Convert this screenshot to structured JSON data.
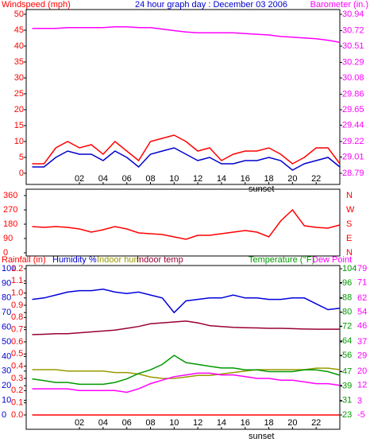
{
  "chart_data": [
    {
      "type": "line",
      "title": "24 hour graph day : December 03 2006",
      "ylabel": "Windspeed (mph)",
      "y2label": "Barometer (in.)",
      "annotation": "sunset",
      "x": [
        -2,
        -1,
        0,
        1,
        2,
        3,
        4,
        5,
        6,
        7,
        8,
        9,
        10,
        11,
        12,
        13,
        14,
        15,
        16,
        17,
        18,
        19,
        20,
        21,
        22,
        23,
        24
      ],
      "xlim": [
        -2.5,
        24
      ],
      "xticks": [
        {
          "value": 2,
          "label": "02"
        },
        {
          "value": 4,
          "label": "04"
        },
        {
          "value": 6,
          "label": "06"
        },
        {
          "value": 8,
          "label": "08"
        },
        {
          "value": 10,
          "label": "10"
        },
        {
          "value": 12,
          "label": "12"
        },
        {
          "value": 14,
          "label": "14"
        },
        {
          "value": 16,
          "label": "16"
        },
        {
          "value": 18,
          "label": "18"
        },
        {
          "value": 20,
          "label": "20"
        },
        {
          "value": 22,
          "label": "22"
        }
      ],
      "ylim": [
        0,
        50
      ],
      "yticks": [
        0,
        5,
        10,
        15,
        20,
        25,
        30,
        35,
        40,
        45,
        50
      ],
      "y2lim": [
        28.79,
        30.94
      ],
      "y2ticks": [
        28.79,
        29.01,
        29.22,
        29.44,
        29.65,
        29.86,
        30.08,
        30.29,
        30.51,
        30.72,
        30.94
      ],
      "series": [
        {
          "color": "#ff0000",
          "values": [
            3,
            3,
            8,
            10,
            8,
            9,
            6,
            10,
            7,
            4,
            10,
            11,
            12,
            10,
            7,
            8,
            4,
            6,
            7,
            7,
            8,
            6,
            3,
            5,
            8,
            8,
            3
          ]
        },
        {
          "color": "#0000cc",
          "values": [
            2,
            2,
            5,
            7,
            6,
            6,
            4,
            7,
            5,
            2,
            6,
            7,
            8,
            6,
            4,
            5,
            3,
            3,
            4,
            4,
            5,
            4,
            1,
            3,
            4,
            5,
            2
          ]
        },
        {
          "color": "#ff00ff",
          "axis": "y2",
          "values": [
            30.75,
            30.75,
            30.75,
            30.76,
            30.76,
            30.76,
            30.76,
            30.77,
            30.77,
            30.76,
            30.76,
            30.74,
            30.72,
            30.7,
            30.69,
            30.69,
            30.69,
            30.69,
            30.68,
            30.67,
            30.66,
            30.64,
            30.63,
            30.62,
            30.61,
            30.59,
            30.56
          ]
        }
      ]
    },
    {
      "type": "line",
      "x": [
        -2,
        -1,
        0,
        1,
        2,
        3,
        4,
        5,
        6,
        7,
        8,
        9,
        10,
        11,
        12,
        13,
        14,
        15,
        16,
        17,
        18,
        19,
        20,
        21,
        22,
        23,
        24
      ],
      "xlim": [
        -2.5,
        24
      ],
      "ylim": [
        0,
        360
      ],
      "yticks": [
        0,
        90,
        180,
        270,
        360
      ],
      "direction_labels": [
        "N",
        "E",
        "S",
        "W",
        "N"
      ],
      "series": [
        {
          "color": "#ff0000",
          "values": [
            165,
            160,
            165,
            160,
            150,
            130,
            145,
            165,
            150,
            125,
            120,
            115,
            100,
            85,
            110,
            110,
            120,
            130,
            140,
            130,
            100,
            200,
            270,
            170,
            160,
            155,
            175
          ]
        }
      ]
    },
    {
      "type": "line",
      "annotation": "sunset",
      "x": [
        -2,
        -1,
        0,
        1,
        2,
        3,
        4,
        5,
        6,
        7,
        8,
        9,
        10,
        11,
        12,
        13,
        14,
        15,
        16,
        17,
        18,
        19,
        20,
        21,
        22,
        23,
        24
      ],
      "xlim": [
        -2.5,
        24
      ],
      "xticks": [
        {
          "value": 2,
          "label": "02"
        },
        {
          "value": 4,
          "label": "04"
        },
        {
          "value": 6,
          "label": "06"
        },
        {
          "value": 8,
          "label": "08"
        },
        {
          "value": 10,
          "label": "10"
        },
        {
          "value": 12,
          "label": "12"
        },
        {
          "value": 14,
          "label": "14"
        },
        {
          "value": 16,
          "label": "16"
        },
        {
          "value": 18,
          "label": "18"
        },
        {
          "value": 20,
          "label": "20"
        },
        {
          "value": 22,
          "label": "22"
        }
      ],
      "ylim": [
        0,
        100
      ],
      "yticks": [
        0,
        10,
        20,
        30,
        40,
        50,
        60,
        70,
        80,
        90,
        100
      ],
      "y4lim": [
        0,
        1.2
      ],
      "y4ticks": [
        {
          "value": 0,
          "label": "0.0"
        },
        0.1,
        0.2,
        0.3,
        0.4,
        0.5,
        0.6,
        0.7,
        0.8,
        0.9,
        {
          "value": 1,
          "label": "1.0"
        },
        1.1,
        1.2
      ],
      "y2lim": [
        23,
        104
      ],
      "y2ticks": [
        23,
        31,
        39,
        47,
        56,
        64,
        72,
        80,
        88,
        96,
        104
      ],
      "y3lim": [
        -5,
        79
      ],
      "y3ticks": [
        -5,
        3,
        12,
        20,
        29,
        37,
        46,
        54,
        62,
        71,
        79
      ],
      "series": [
        {
          "name": "Rainfall (in)",
          "color": "#ff0000",
          "axis": "y4",
          "values": [
            0,
            0,
            0,
            0,
            0,
            0,
            0,
            0,
            0,
            0,
            0,
            0,
            0,
            0,
            0,
            0,
            0,
            0,
            0,
            0,
            0,
            0,
            0,
            0,
            0,
            0,
            0
          ]
        },
        {
          "name": "Humidity %",
          "color": "#0000dd",
          "values": [
            79,
            80,
            82,
            84,
            85,
            85,
            86,
            84,
            83,
            84,
            82,
            80,
            70,
            78,
            79,
            80,
            80,
            82,
            80,
            80,
            79,
            79,
            80,
            80,
            76,
            72,
            73
          ]
        },
        {
          "name": "Indoor hum",
          "color": "#999900",
          "values": [
            31,
            31,
            31,
            30,
            30,
            30,
            30,
            29,
            29,
            28,
            26,
            25,
            25,
            26,
            27,
            27,
            28,
            29,
            30,
            31,
            31,
            31,
            31,
            31,
            32,
            32,
            31
          ]
        },
        {
          "name": "Indoor temp",
          "color": "#990033",
          "axis": "y2",
          "values": [
            67.5,
            67.7,
            68,
            68,
            68.5,
            69,
            69.5,
            70,
            71,
            72,
            73.5,
            74,
            74.5,
            75,
            74,
            72.5,
            72,
            71.5,
            71.3,
            71.2,
            71,
            71,
            70.8,
            70.6,
            70.5,
            70.5,
            70.5
          ]
        },
        {
          "name": "Temperature (°F)",
          "color": "#009900",
          "axis": "y2",
          "values": [
            43,
            42,
            41,
            41,
            40,
            40,
            40,
            41,
            43,
            46,
            48,
            51,
            56,
            52,
            51,
            50,
            49,
            49,
            48,
            48,
            47,
            47,
            47,
            48,
            48,
            47,
            45
          ]
        },
        {
          "name": "Dew Point",
          "color": "#ff00ff",
          "axis": "y3",
          "values": [
            10,
            10,
            10,
            10,
            9,
            9,
            9,
            9,
            8,
            10,
            13,
            15,
            17,
            18,
            19,
            19,
            18,
            18,
            17,
            16,
            16,
            15,
            15,
            14,
            13,
            13,
            12
          ]
        }
      ]
    }
  ]
}
